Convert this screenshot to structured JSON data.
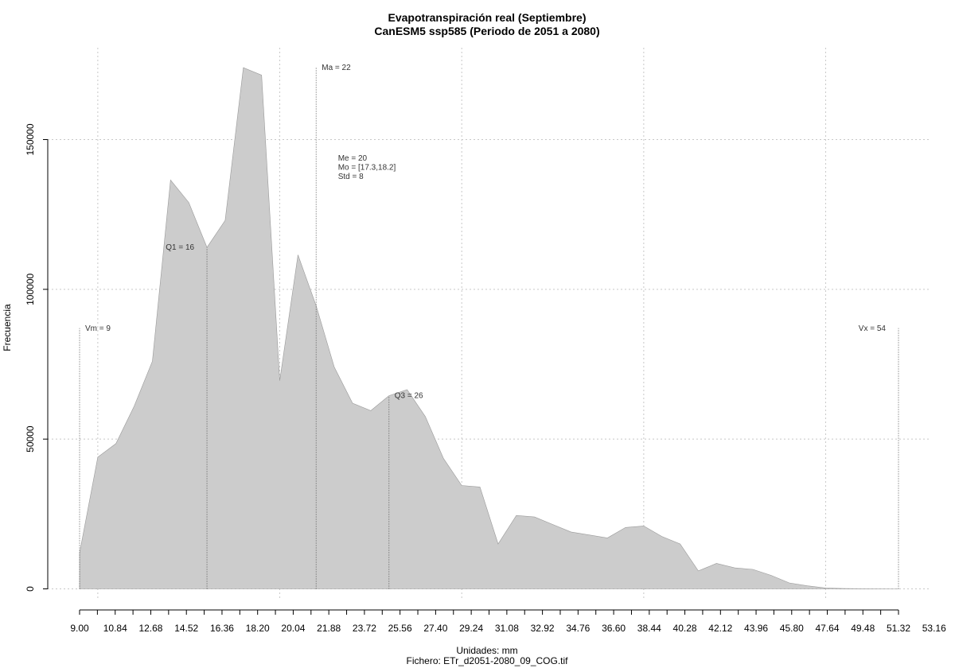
{
  "chart_data": {
    "type": "area",
    "title": "Evapotranspiración real (Septiembre)",
    "subtitle": "CanESM5 ssp585 (Periodo de 2051 a 2080)",
    "xlabel": "Unidades: mm",
    "source": "Fichero: ETr_d2051-2080_09_COG.tif",
    "ylabel": "Frecuencia",
    "xlim": [
      9.0,
      54.0
    ],
    "ylim": [
      0,
      175000
    ],
    "grid": true,
    "fill_color": "#cccccc",
    "line_color": "#999999",
    "x_ticks": [
      "9.00",
      "10.84",
      "12.68",
      "14.52",
      "16.36",
      "18.20",
      "20.04",
      "21.88",
      "23.72",
      "25.56",
      "27.40",
      "29.24",
      "31.08",
      "32.92",
      "34.76",
      "36.60",
      "38.44",
      "40.28",
      "42.12",
      "43.96",
      "45.80",
      "47.64",
      "49.48",
      "51.32",
      "53.16"
    ],
    "y_ticks": [
      "0",
      "50000",
      "100000",
      "150000"
    ],
    "x": [
      9.0,
      10.0,
      11.0,
      12.0,
      13.0,
      14.0,
      15.0,
      16.0,
      17.0,
      18.0,
      19.0,
      20.0,
      21.0,
      22.0,
      23.0,
      24.0,
      25.0,
      26.0,
      27.0,
      28.0,
      29.0,
      30.0,
      31.0,
      32.0,
      33.0,
      34.0,
      35.0,
      36.0,
      37.0,
      38.0,
      39.0,
      40.0,
      41.0,
      42.0,
      43.0,
      44.0,
      45.0,
      46.0,
      47.0,
      48.0,
      49.0,
      50.0,
      51.0,
      52.0,
      53.0,
      54.0
    ],
    "y": [
      12000,
      44000,
      48500,
      61000,
      76000,
      136500,
      129000,
      114000,
      123000,
      174000,
      171500,
      69500,
      111500,
      94500,
      74000,
      62000,
      59500,
      64500,
      66500,
      57500,
      43500,
      34500,
      34000,
      15000,
      24500,
      24000,
      21500,
      19000,
      18000,
      17000,
      20500,
      21000,
      17500,
      15000,
      6000,
      8500,
      7000,
      6500,
      4500,
      2000,
      1000,
      300,
      100,
      50,
      20,
      0
    ],
    "markers": [
      {
        "label": "Vm = 9",
        "x": 9.0,
        "y_top": 87000,
        "anchor": "start"
      },
      {
        "label": "Q1 = 16",
        "x": 16.0,
        "y_top": 114000,
        "anchor": "end"
      },
      {
        "label": "Ma = 22",
        "x": 22.0,
        "y_top": 174000,
        "anchor": "start"
      },
      {
        "label": "Q3 = 26",
        "x": 26.0,
        "y_top": 64500,
        "anchor": "start"
      },
      {
        "label": "Vx = 54",
        "x": 54.0,
        "y_top": 87000,
        "anchor": "end"
      }
    ],
    "stats": {
      "anchor_x": 23.2,
      "anchor_y": 143000,
      "lines": [
        "Me = 20",
        "Mo = [17.3,18.2]",
        "Std = 8"
      ]
    }
  }
}
